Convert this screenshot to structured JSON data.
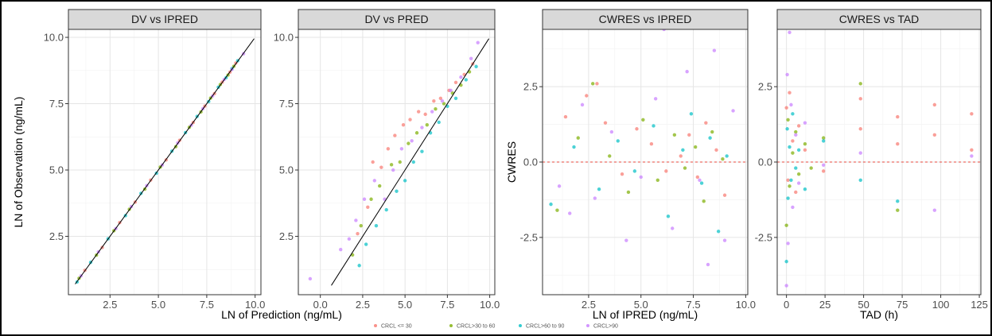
{
  "chart_data": [
    {
      "type": "scatter",
      "title": "DV vs IPRED",
      "xlabel": "LN of Prediction (ng/mL)",
      "ylabel": "LN of Observation (ng/mL)",
      "xlim": [
        0.35,
        10.3
      ],
      "ylim": [
        0.3,
        10.3
      ],
      "xticks": [
        2.5,
        5.0,
        7.5,
        10.0
      ],
      "xtick_labels": [
        "2.5",
        "5.0",
        "7.5",
        "10.0"
      ],
      "yticks": [
        2.5,
        5.0,
        7.5,
        10.0
      ],
      "ytick_labels": [
        "2.5",
        "5.0",
        "7.5",
        "10.0"
      ],
      "grid": true,
      "reference": {
        "kind": "identity",
        "color": "#000000"
      },
      "series": [
        {
          "name": "CRCL <= 30",
          "color": "#F8766D",
          "x": [
            1.2,
            2.1,
            3.0,
            3.8,
            4.6,
            5.4,
            6.1,
            6.8,
            7.4,
            7.9,
            8.3,
            8.7,
            9.0
          ],
          "y": [
            1.22,
            2.08,
            3.02,
            3.79,
            4.62,
            5.38,
            6.12,
            6.79,
            7.41,
            7.88,
            8.31,
            8.69,
            9.03
          ]
        },
        {
          "name": "CRCL>30 to 60",
          "color": "#7CAE00",
          "x": [
            0.9,
            1.8,
            2.7,
            3.5,
            4.3,
            5.1,
            5.9,
            6.6,
            7.2,
            7.7,
            8.2,
            8.6,
            8.9
          ],
          "y": [
            0.92,
            1.79,
            2.71,
            3.52,
            4.28,
            5.11,
            5.88,
            6.61,
            7.19,
            7.71,
            8.22,
            8.58,
            8.91
          ]
        },
        {
          "name": "CRCL>60 to 90",
          "color": "#00BFC4",
          "x": [
            0.8,
            1.5,
            2.4,
            3.3,
            4.1,
            4.9,
            5.7,
            6.4,
            7.0,
            7.6,
            8.1,
            8.5,
            8.8,
            9.1
          ],
          "y": [
            0.78,
            1.52,
            2.41,
            3.28,
            4.12,
            4.88,
            5.71,
            6.41,
            7.02,
            7.58,
            8.12,
            8.48,
            8.82,
            9.12
          ]
        },
        {
          "name": "CRCL>90",
          "color": "#C77CFF",
          "x": [
            1.0,
            1.9,
            2.8,
            3.6,
            4.4,
            5.2,
            6.0,
            6.7,
            7.3,
            7.8,
            8.4,
            8.8,
            9.4
          ],
          "y": [
            1.01,
            1.91,
            2.79,
            3.62,
            4.41,
            5.19,
            6.02,
            6.69,
            7.31,
            7.79,
            8.41,
            8.79,
            9.38
          ]
        }
      ]
    },
    {
      "type": "scatter",
      "title": "DV vs PRED",
      "xlabel": "",
      "ylabel": "",
      "xlim": [
        -1.3,
        10.3
      ],
      "ylim": [
        0.3,
        10.3
      ],
      "xticks": [
        0.0,
        2.5,
        5.0,
        7.5,
        10.0
      ],
      "xtick_labels": [
        "0.0",
        "2.5",
        "5.0",
        "7.5",
        "10.0"
      ],
      "yticks": [
        2.5,
        5.0,
        7.5,
        10.0
      ],
      "ytick_labels": [
        "2.5",
        "5.0",
        "7.5",
        "10.0"
      ],
      "grid": true,
      "reference": {
        "kind": "identity",
        "color": "#000000"
      },
      "series": [
        {
          "name": "CRCL <= 30",
          "color": "#F8766D",
          "x": [
            2.2,
            2.8,
            3.1,
            3.6,
            4.0,
            4.4,
            4.9,
            5.3,
            5.8,
            6.2,
            6.7,
            7.1,
            7.6,
            8.0,
            8.5,
            9.0
          ],
          "y": [
            2.6,
            3.6,
            5.3,
            5.1,
            5.8,
            6.3,
            6.7,
            6.9,
            7.2,
            7.1,
            7.6,
            7.7,
            8.0,
            8.3,
            8.6,
            9.0
          ]
        },
        {
          "name": "CRCL>30 to 60",
          "color": "#7CAE00",
          "x": [
            1.9,
            2.4,
            3.0,
            3.5,
            4.2,
            4.7,
            5.2,
            5.7,
            6.3,
            6.8,
            7.3,
            7.8,
            8.3,
            8.8
          ],
          "y": [
            1.8,
            2.9,
            3.9,
            4.4,
            5.2,
            5.3,
            6.0,
            6.4,
            6.7,
            7.3,
            7.5,
            7.9,
            8.2,
            8.7
          ]
        },
        {
          "name": "CRCL>60 to 90",
          "color": "#00BFC4",
          "x": [
            2.3,
            2.7,
            3.3,
            3.9,
            4.5,
            5.0,
            5.5,
            6.0,
            6.5,
            7.0,
            7.5,
            8.0,
            8.6,
            9.2
          ],
          "y": [
            1.4,
            2.2,
            2.9,
            3.5,
            4.2,
            4.6,
            5.3,
            5.7,
            6.4,
            6.8,
            7.4,
            7.7,
            8.4,
            8.9
          ]
        },
        {
          "name": "CRCL>90",
          "color": "#C77CFF",
          "x": [
            -0.6,
            1.2,
            1.7,
            2.1,
            2.6,
            3.2,
            3.8,
            4.3,
            4.8,
            5.4,
            6.0,
            6.6,
            7.2,
            7.7,
            8.3,
            8.9,
            9.3
          ],
          "y": [
            0.9,
            2.0,
            2.4,
            3.1,
            3.9,
            4.6,
            3.9,
            5.0,
            5.8,
            6.1,
            6.6,
            7.2,
            7.6,
            8.0,
            8.5,
            9.2,
            9.8
          ]
        }
      ]
    },
    {
      "type": "scatter",
      "title": "CWRES vs IPRED",
      "xlabel": "LN of IPRED (ng/mL)",
      "ylabel": "CWRES",
      "xlim": [
        0.3,
        10.1
      ],
      "ylim": [
        -4.4,
        4.4
      ],
      "xticks": [
        2.5,
        5.0,
        7.5,
        10.0
      ],
      "xtick_labels": [
        "2.5",
        "5.0",
        "7.5",
        "10.0"
      ],
      "yticks": [
        -2.5,
        0.0,
        2.5
      ],
      "ytick_labels": [
        "-2.5",
        "0.0",
        "2.5"
      ],
      "grid": true,
      "reference": {
        "kind": "hline",
        "y": 0,
        "color": "#E8483F"
      },
      "series": [
        {
          "name": "CRCL <= 30",
          "color": "#F8766D",
          "x": [
            1.4,
            2.4,
            2.9,
            3.3,
            4.1,
            4.8,
            5.5,
            6.2,
            6.9,
            7.3,
            7.7,
            8.1,
            8.6,
            9.0
          ],
          "y": [
            1.5,
            2.2,
            2.6,
            1.3,
            -0.4,
            1.1,
            0.6,
            -0.3,
            0.2,
            0.9,
            -0.5,
            1.3,
            0.4,
            -1.1
          ]
        },
        {
          "name": "CRCL>30 to 60",
          "color": "#7CAE00",
          "x": [
            1.0,
            2.0,
            2.7,
            3.5,
            4.4,
            5.1,
            5.8,
            6.6,
            7.1,
            7.6,
            8.0,
            8.4,
            8.9
          ],
          "y": [
            -1.6,
            0.8,
            2.6,
            0.2,
            -1.0,
            1.4,
            -0.6,
            0.9,
            -0.2,
            0.5,
            -1.3,
            1.0,
            0.1
          ]
        },
        {
          "name": "CRCL>60 to 90",
          "color": "#00BFC4",
          "x": [
            0.7,
            1.8,
            3.0,
            3.9,
            4.7,
            5.6,
            6.3,
            7.0,
            7.4,
            7.9,
            8.3,
            8.7,
            9.1
          ],
          "y": [
            -1.4,
            0.5,
            -0.9,
            0.7,
            -0.3,
            1.2,
            -1.8,
            0.4,
            1.6,
            -0.7,
            0.8,
            -2.3,
            0.2
          ]
        },
        {
          "name": "CRCL>90",
          "color": "#C77CFF",
          "x": [
            1.1,
            1.6,
            2.2,
            2.8,
            3.6,
            4.3,
            5.0,
            5.7,
            6.1,
            6.5,
            7.2,
            7.8,
            8.2,
            8.5,
            9.0,
            9.4
          ],
          "y": [
            -0.8,
            -1.7,
            1.9,
            -1.2,
            1.0,
            -2.6,
            -0.5,
            2.1,
            4.4,
            -2.2,
            3.0,
            -0.6,
            -3.4,
            3.7,
            -2.6,
            1.7
          ]
        }
      ]
    },
    {
      "type": "scatter",
      "title": "CWRES vs TAD",
      "xlabel": "TAD (h)",
      "ylabel": "",
      "xlim": [
        -6,
        126
      ],
      "ylim": [
        -4.4,
        4.4
      ],
      "xticks": [
        0,
        25,
        50,
        75,
        100,
        125
      ],
      "xtick_labels": [
        "0",
        "25",
        "50",
        "75",
        "100",
        "125"
      ],
      "yticks": [
        -2.5,
        0.0,
        2.5
      ],
      "ytick_labels": [
        "-2.5",
        "0.0",
        "2.5"
      ],
      "grid": true,
      "reference": {
        "kind": "hline",
        "y": 0,
        "color": "#E8483F"
      },
      "series": [
        {
          "name": "CRCL <= 30",
          "color": "#F8766D",
          "x": [
            0,
            1,
            2,
            4,
            6,
            8,
            12,
            24,
            48,
            48,
            72,
            72,
            96,
            96,
            120,
            120
          ],
          "y": [
            1.8,
            -0.6,
            2.3,
            0.7,
            -1.0,
            1.2,
            0.4,
            -0.3,
            2.1,
            1.1,
            1.5,
            0.6,
            1.9,
            0.9,
            1.6,
            0.4
          ]
        },
        {
          "name": "CRCL>30 to 60",
          "color": "#7CAE00",
          "x": [
            0,
            1,
            2,
            4,
            6,
            8,
            12,
            16,
            24,
            48,
            72
          ],
          "y": [
            -2.1,
            1.4,
            -0.8,
            0.3,
            1.0,
            -0.4,
            0.6,
            -0.2,
            0.8,
            2.6,
            -1.6
          ]
        },
        {
          "name": "CRCL>60 to 90",
          "color": "#00BFC4",
          "x": [
            0,
            0.5,
            1,
            2,
            3,
            4,
            6,
            8,
            12,
            24,
            48,
            72
          ],
          "y": [
            -3.3,
            1.1,
            -1.2,
            0.5,
            -0.6,
            1.6,
            -0.2,
            0.4,
            -0.9,
            0.7,
            -0.6,
            -1.3
          ]
        },
        {
          "name": "CRCL>90",
          "color": "#C77CFF",
          "x": [
            0,
            0.5,
            1,
            2,
            3,
            4,
            6,
            8,
            12,
            24,
            48,
            96,
            120
          ],
          "y": [
            -4.1,
            2.9,
            -2.7,
            4.3,
            1.9,
            -1.5,
            0.9,
            -0.7,
            1.3,
            -0.1,
            0.3,
            -1.6,
            0.2
          ]
        }
      ]
    }
  ],
  "legend": {
    "placement": "bottom",
    "entries": [
      {
        "label": "CRCL <= 30",
        "color": "#F8766D"
      },
      {
        "label": "CRCL>30 to 60",
        "color": "#7CAE00"
      },
      {
        "label": "CRCL>60 to 90",
        "color": "#00BFC4"
      },
      {
        "label": "CRCL>90",
        "color": "#C77CFF"
      }
    ]
  },
  "colors": {
    "panel_background": "#FFFFFF",
    "strip_background": "#D9D9D9",
    "grid_major": "#E5E5E5",
    "grid_minor": "#F2F2F2",
    "panel_border": "#333333"
  }
}
